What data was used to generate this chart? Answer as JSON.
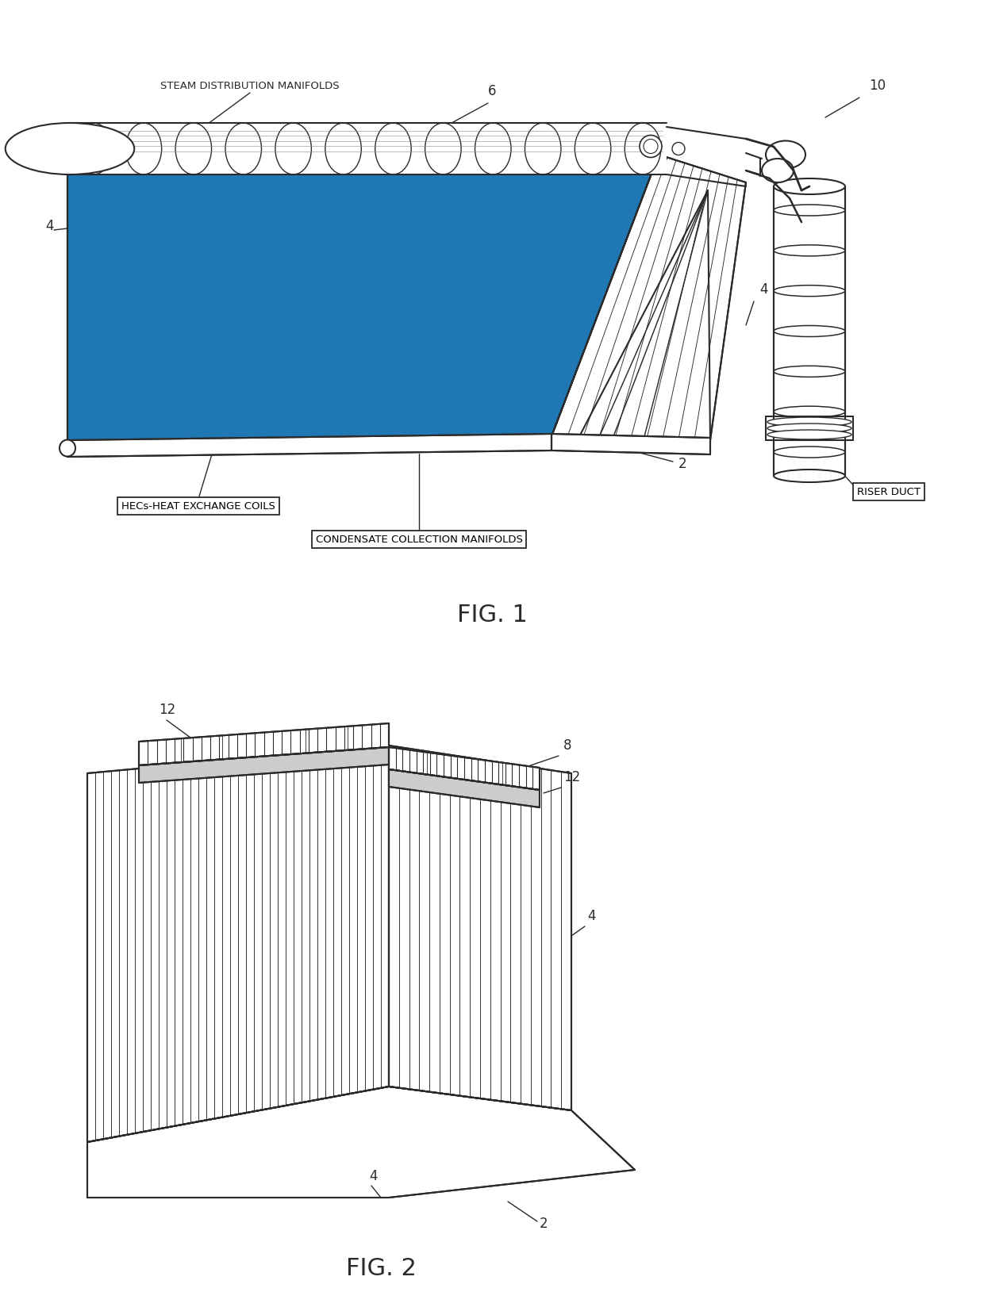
{
  "background_color": "#ffffff",
  "fig_width": 12.4,
  "fig_height": 16.53,
  "line_color": "#2a2a2a",
  "fig1_caption": "FIG. 1",
  "fig2_caption": "FIG. 2",
  "label_steam": "STEAM DISTRIBUTION MANIFOLDS",
  "label_hecs": "HECs-HEAT EXCHANGE COILS",
  "label_condensate": "CONDENSATE COLLECTION MANIFOLDS",
  "label_riser": "RISER DUCT",
  "ref_10": "10",
  "ref_6": "6",
  "ref_4": "4",
  "ref_2": "2",
  "ref_8": "8",
  "ref_12": "12"
}
